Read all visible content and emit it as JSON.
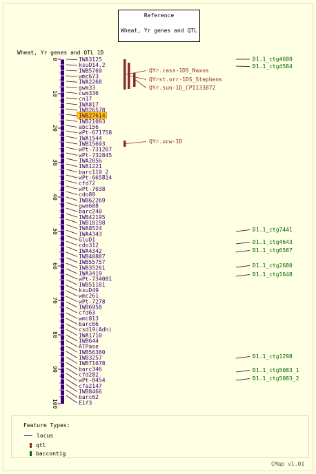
{
  "reference_box": {
    "title": "Reference",
    "subtitle": "Wheat, Yr genes and QTL"
  },
  "map_title": "Wheat, Yr genes and QTL 1D",
  "axis_ticks": [
    "0",
    "10",
    "20",
    "30",
    "40",
    "50",
    "60",
    "70",
    "80",
    "90",
    "100"
  ],
  "loci": [
    {
      "label": "IWA3125",
      "pos": 0
    },
    {
      "label": "ksuD14.2",
      "pos": 1.6
    },
    {
      "label": "IWB5769",
      "pos": 3.2
    },
    {
      "label": "wmc673",
      "pos": 4.8
    },
    {
      "label": "IWA2268",
      "pos": 6.4
    },
    {
      "label": "gwm33",
      "pos": 8.0
    },
    {
      "label": "cwm336",
      "pos": 9.6
    },
    {
      "label": "cn17",
      "pos": 11.2
    },
    {
      "label": "IWA817",
      "pos": 12.8
    },
    {
      "label": "IWB26578",
      "pos": 14.4
    },
    {
      "label": "IWB27614",
      "pos": 16.0,
      "highlight": true
    },
    {
      "label": "IWB21003",
      "pos": 17.6
    },
    {
      "label": "abc156",
      "pos": 19.2
    },
    {
      "label": "wPt-671758",
      "pos": 20.8
    },
    {
      "label": "IWA1544",
      "pos": 22.4
    },
    {
      "label": "IWB15693",
      "pos": 24.0
    },
    {
      "label": "wPt-731267",
      "pos": 25.6
    },
    {
      "label": "wPt-732845",
      "pos": 27.2
    },
    {
      "label": "IWA2056",
      "pos": 28.8
    },
    {
      "label": "IWA1221",
      "pos": 30.4
    },
    {
      "label": "barc119_2",
      "pos": 32.0
    },
    {
      "label": "wPt-665814",
      "pos": 33.6
    },
    {
      "label": "cfd72",
      "pos": 35.2
    },
    {
      "label": "wPt-7038",
      "pos": 36.8
    },
    {
      "label": "cdo89",
      "pos": 38.4
    },
    {
      "label": "IWB62269",
      "pos": 40.0
    },
    {
      "label": "gwm608",
      "pos": 41.6
    },
    {
      "label": "barc240",
      "pos": 43.2
    },
    {
      "label": "IWB42195",
      "pos": 44.8
    },
    {
      "label": "IWB18198",
      "pos": 46.4
    },
    {
      "label": "IWA8524",
      "pos": 48.0
    },
    {
      "label": "IWA4343",
      "pos": 49.6
    },
    {
      "label": "GluD1",
      "pos": 51.2
    },
    {
      "label": "cdo312",
      "pos": 52.8
    },
    {
      "label": "IWA4342",
      "pos": 54.4
    },
    {
      "label": "IWB40887",
      "pos": 56.0
    },
    {
      "label": "IWB55757",
      "pos": 57.6
    },
    {
      "label": "IWB35261",
      "pos": 59.2
    },
    {
      "label": "IWA3419",
      "pos": 60.8
    },
    {
      "label": "wPt-734081",
      "pos": 62.4
    },
    {
      "label": "IWB51181",
      "pos": 64.0
    },
    {
      "label": "ksuD49",
      "pos": 65.6
    },
    {
      "label": "wmc261",
      "pos": 67.2
    },
    {
      "label": "wPt-7278",
      "pos": 68.8
    },
    {
      "label": "IWB6958",
      "pos": 70.4
    },
    {
      "label": "cfd63",
      "pos": 72.0
    },
    {
      "label": "wmc813",
      "pos": 73.6
    },
    {
      "label": "barc66",
      "pos": 75.2
    },
    {
      "label": "csd19(Adh)",
      "pos": 76.8
    },
    {
      "label": "IWA1710",
      "pos": 78.4
    },
    {
      "label": "IWB644",
      "pos": 80.0
    },
    {
      "label": "ATPase",
      "pos": 81.6
    },
    {
      "label": "IWB56380",
      "pos": 83.2
    },
    {
      "label": "IWB3257",
      "pos": 84.8
    },
    {
      "label": "IWB71678",
      "pos": 86.4
    },
    {
      "label": "barc346",
      "pos": 88.0
    },
    {
      "label": "cfd282",
      "pos": 89.6
    },
    {
      "label": "wPt-8454",
      "pos": 91.2
    },
    {
      "label": "cfa2147",
      "pos": 92.8
    },
    {
      "label": "IWB8466",
      "pos": 94.4
    },
    {
      "label": "barc62",
      "pos": 96.0
    },
    {
      "label": "E1f3",
      "pos": 97.6
    }
  ],
  "qtls": [
    {
      "label": "QYr.cass-1DS_Naxos",
      "start": 0,
      "end": 8.8
    },
    {
      "label": "QYrst.orr-1DS_Stephens",
      "start": 1.0,
      "end": 8.6
    },
    {
      "label": "QYr.sun-1D_CPI133872",
      "start": 4.0,
      "end": 8.0
    },
    {
      "label": "QYr.ucw-1D",
      "start": 23.6,
      "end": 25.4
    }
  ],
  "qtl_label_pos": [
    3.8,
    6.4,
    8.8,
    24.4
  ],
  "contigs": [
    {
      "label": "D1.1_ctg4680",
      "pos": 0
    },
    {
      "label": "D1.1_ctg4584",
      "pos": 2.0
    },
    {
      "label": "D1.1_ctg7441",
      "pos": 50.0
    },
    {
      "label": "D1.1_ctg4643",
      "pos": 53.6
    },
    {
      "label": "D1.1_ctg6587",
      "pos": 56.0
    },
    {
      "label": "D1.1_ctg2680",
      "pos": 60.4
    },
    {
      "label": "D1.1_ctg1648",
      "pos": 63.0
    },
    {
      "label": "D1.1_ctg1298",
      "pos": 86.8
    },
    {
      "label": "D1.1_ctg5083_1",
      "pos": 90.8
    },
    {
      "label": "D1.1_ctg5083_2",
      "pos": 93.2
    }
  ],
  "legend": {
    "title": "Feature Types:",
    "items": [
      {
        "label": "locus",
        "color": "#3a007a"
      },
      {
        "label": "qtl",
        "color": "#8b2a2a"
      },
      {
        "label": "baccontig",
        "color": "#006400"
      }
    ]
  },
  "cmap_version": "CMap v1.01",
  "colors": {
    "locus": "#3a007a",
    "qtl": "#8b2a2a",
    "contig": "#006400",
    "highlight_bg": "#ffcc00",
    "highlight_border": "#ff8800"
  }
}
